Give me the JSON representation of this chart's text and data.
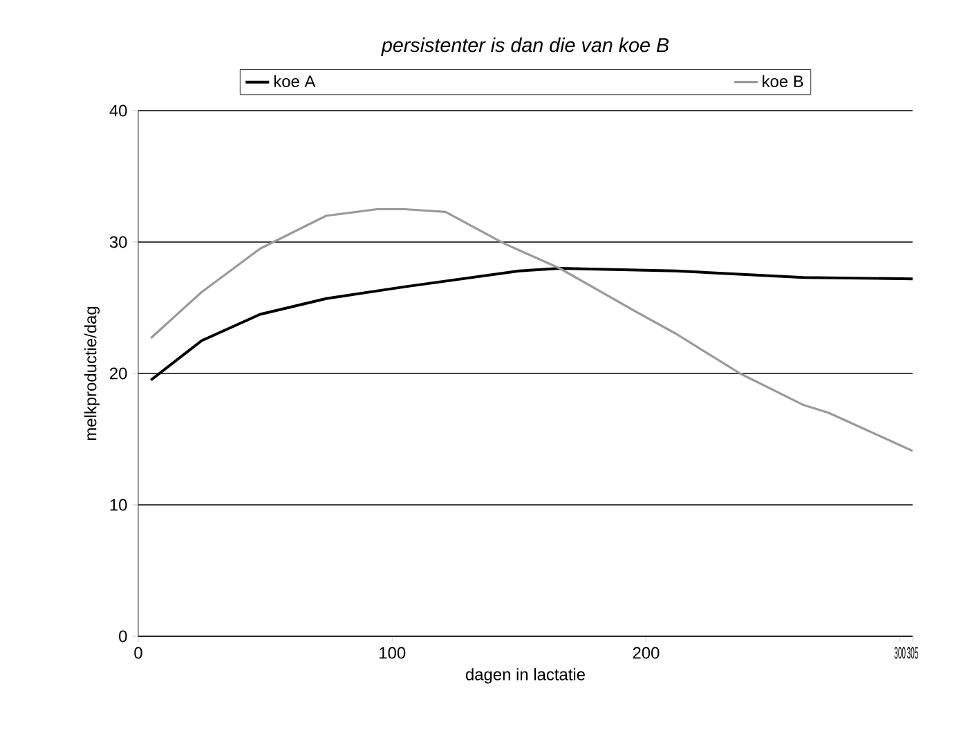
{
  "chart_data": {
    "type": "line",
    "title": "persistenter is dan die van koe B",
    "xlabel": "dagen in lactatie",
    "ylabel": "melkproductie/dag",
    "x": [
      5,
      25,
      48,
      74,
      94,
      105,
      121,
      144,
      166,
      196,
      212,
      237,
      262,
      272,
      305
    ],
    "series": [
      {
        "name": "koe A",
        "color": "#000000",
        "x": [
          5,
          25,
          48,
          74,
          105,
          150,
          166,
          212,
          262,
          305
        ],
        "values": [
          19.5,
          22.5,
          24.5,
          25.7,
          26.6,
          27.8,
          28.0,
          27.8,
          27.3,
          27.2
        ]
      },
      {
        "name": "koe B",
        "color": "#9a9a9a",
        "values": [
          22.7,
          26.2,
          29.5,
          32.0,
          32.5,
          32.5,
          32.3,
          29.9,
          28.0,
          24.7,
          23.0,
          20.0,
          17.6,
          17.0,
          14.1
        ]
      }
    ],
    "xlim": [
      0,
      305
    ],
    "ylim": [
      0,
      40
    ],
    "xticks": [
      0,
      100,
      200,
      300,
      305
    ],
    "yticks": [
      0,
      10,
      20,
      30,
      40
    ],
    "grid": "y",
    "legend": "top",
    "marker": "none",
    "line_style": "solid"
  }
}
